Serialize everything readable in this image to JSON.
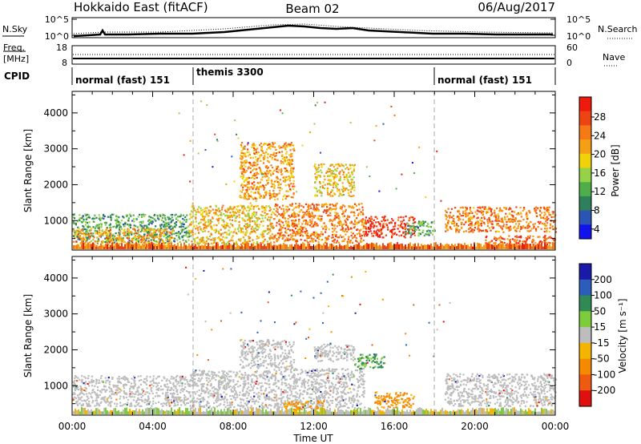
{
  "header": {
    "station": "Hokkaido East (fitACF)",
    "beam": "Beam 02",
    "date": "06/Aug/2017"
  },
  "noise_panel": {
    "left_label": "N.Sky",
    "right_label": "N.Search",
    "left_ticks": [
      "10^5",
      "10^0"
    ],
    "right_ticks": [
      "10^5",
      "10^0"
    ]
  },
  "freq_panel": {
    "left_label_line1": "Freq.",
    "left_label_line2": "[MHz]",
    "right_label": "Nave",
    "left_ticks": [
      "18",
      "8"
    ],
    "right_ticks": [
      "60",
      "0"
    ]
  },
  "cpid_panel": {
    "label": "CPID",
    "segments": [
      {
        "name": "normal (fast) 151",
        "start_hour": 0,
        "end_hour": 6
      },
      {
        "name": "themis 3300",
        "start_hour": 6,
        "end_hour": 18
      },
      {
        "name": "normal (fast) 151",
        "start_hour": 18,
        "end_hour": 24
      }
    ]
  },
  "power_panel": {
    "ylabel": "Slant Range [km]",
    "colorbar_label": "Power [dB]",
    "colorbar_ticks": [
      "28",
      "24",
      "20",
      "16",
      "12",
      "8",
      "4"
    ]
  },
  "velocity_panel": {
    "ylabel": "Slant Range [km]",
    "colorbar_label": "Velocity [m s⁻¹]",
    "colorbar_ticks": [
      "200",
      "100",
      "50",
      "15",
      "-15",
      "-50",
      "-100",
      "-200"
    ]
  },
  "xaxis": {
    "label": "Time UT",
    "ticks": [
      "00:00",
      "04:00",
      "08:00",
      "12:00",
      "16:00",
      "20:00",
      "00:00"
    ]
  },
  "chart_data": [
    {
      "type": "heatmap",
      "title": "",
      "xlabel": "Time UT",
      "ylabel": "Slant Range [km]",
      "xlim": [
        0,
        24
      ],
      "ylim": [
        180,
        4600
      ],
      "yticks": [
        1000,
        2000,
        3000,
        4000
      ],
      "color_scale": "Power [dB]",
      "color_range": [
        0,
        30
      ],
      "regions": [
        {
          "t0": 0.0,
          "t1": 5.8,
          "r0": 400,
          "r1": 1200,
          "value": 10
        },
        {
          "t0": 0.0,
          "t1": 5.0,
          "r0": 300,
          "r1": 800,
          "value": 20
        },
        {
          "t0": 5.8,
          "t1": 10.0,
          "r0": 350,
          "r1": 1450,
          "value": 18
        },
        {
          "t0": 8.3,
          "t1": 11.0,
          "r0": 1600,
          "r1": 3200,
          "value": 20
        },
        {
          "t0": 10.0,
          "t1": 14.5,
          "r0": 400,
          "r1": 1500,
          "value": 22
        },
        {
          "t0": 12.0,
          "t1": 14.0,
          "r0": 1700,
          "r1": 2600,
          "value": 18
        },
        {
          "t0": 14.5,
          "t1": 17.0,
          "r0": 550,
          "r1": 1150,
          "value": 27
        },
        {
          "t0": 16.5,
          "t1": 18.0,
          "r0": 600,
          "r1": 1000,
          "value": 10
        },
        {
          "t0": 18.5,
          "t1": 24.0,
          "r0": 700,
          "r1": 1400,
          "value": 22
        },
        {
          "t0": 20.5,
          "t1": 24.0,
          "r0": 300,
          "r1": 600,
          "value": 24
        }
      ]
    },
    {
      "type": "heatmap",
      "title": "",
      "xlabel": "Time UT",
      "ylabel": "Slant Range [km]",
      "xlim": [
        0,
        24
      ],
      "ylim": [
        180,
        4600
      ],
      "yticks": [
        1000,
        2000,
        3000,
        4000
      ],
      "color_scale": "Velocity [m s⁻¹]",
      "color_range": [
        -200,
        200
      ],
      "regions": [
        {
          "t0": 0.0,
          "t1": 5.8,
          "r0": 450,
          "r1": 1300,
          "value": 0
        },
        {
          "t0": 5.8,
          "t1": 10.0,
          "r0": 400,
          "r1": 1450,
          "value": 0
        },
        {
          "t0": 8.3,
          "t1": 11.0,
          "r0": 1500,
          "r1": 2300,
          "value": 0
        },
        {
          "t0": 10.0,
          "t1": 14.5,
          "r0": 400,
          "r1": 1500,
          "value": 0
        },
        {
          "t0": 12.0,
          "t1": 14.0,
          "r0": 1700,
          "r1": 2200,
          "value": 0
        },
        {
          "t0": 14.0,
          "t1": 15.5,
          "r0": 1500,
          "r1": 1900,
          "value": 30
        },
        {
          "t0": 10.5,
          "t1": 12.5,
          "r0": 350,
          "r1": 600,
          "value": -60
        },
        {
          "t0": 15.0,
          "t1": 17.0,
          "r0": 400,
          "r1": 850,
          "value": -60
        },
        {
          "t0": 18.5,
          "t1": 24.0,
          "r0": 450,
          "r1": 1350,
          "value": 0
        }
      ]
    }
  ]
}
